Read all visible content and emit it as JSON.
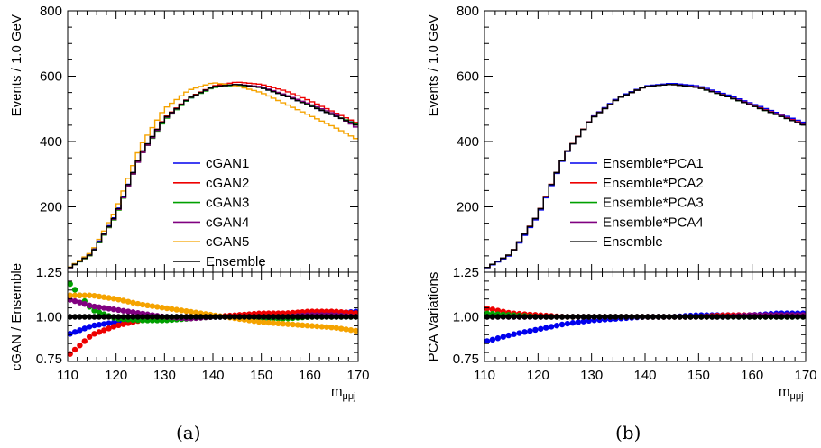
{
  "chart_data": [
    {
      "type": "line",
      "panel": "a",
      "caption": "(a)",
      "xlabel": "m_μμj",
      "xlim": [
        110,
        170
      ],
      "x_ticks": [
        110,
        120,
        130,
        140,
        150,
        160,
        170
      ],
      "x_tick_labels": [
        "110",
        "120",
        "130",
        "140",
        "150",
        "160",
        "170"
      ],
      "top": {
        "ylabel": "Events / 1.0 GeV",
        "ylim": [
          0,
          800
        ],
        "y_ticks": [
          200,
          400,
          600,
          800
        ],
        "y_tick_labels": [
          "200",
          "400",
          "600",
          "800"
        ],
        "legend_position": "center",
        "series": [
          {
            "name": "cGAN1",
            "color": "#0000ee",
            "x": [
              110,
              115,
              120,
              125,
              130,
              135,
              140,
              145,
              150,
              155,
              160,
              165,
              170
            ],
            "values": [
              10,
              60,
              178,
              360,
              470,
              530,
              568,
              575,
              565,
              540,
              510,
              480,
              452
            ]
          },
          {
            "name": "cGAN2",
            "color": "#ee0000",
            "x": [
              110,
              115,
              120,
              125,
              130,
              135,
              140,
              145,
              150,
              155,
              160,
              165,
              170
            ],
            "values": [
              10,
              55,
              172,
              358,
              472,
              533,
              570,
              582,
              575,
              555,
              525,
              490,
              455
            ]
          },
          {
            "name": "cGAN3",
            "color": "#00a000",
            "x": [
              110,
              115,
              120,
              125,
              130,
              135,
              140,
              145,
              150,
              155,
              160,
              165,
              170
            ],
            "values": [
              9,
              55,
              172,
              355,
              465,
              530,
              565,
              573,
              565,
              540,
              512,
              482,
              450
            ]
          },
          {
            "name": "cGAN4",
            "color": "#800080",
            "x": [
              110,
              115,
              120,
              125,
              130,
              135,
              140,
              145,
              150,
              155,
              160,
              165,
              170
            ],
            "values": [
              9,
              57,
              174,
              355,
              468,
              532,
              567,
              575,
              568,
              543,
              515,
              485,
              440
            ]
          },
          {
            "name": "cGAN5",
            "color": "#f5a300",
            "x": [
              110,
              115,
              120,
              125,
              130,
              135,
              140,
              145,
              150,
              155,
              160,
              165,
              170
            ],
            "values": [
              11,
              62,
              190,
              385,
              500,
              557,
              580,
              570,
              550,
              515,
              480,
              445,
              405
            ]
          },
          {
            "name": "Ensemble",
            "color": "#000000",
            "x": [
              110,
              115,
              120,
              125,
              130,
              135,
              140,
              145,
              150,
              155,
              160,
              165,
              170
            ],
            "values": [
              10,
              57,
              176,
              360,
              470,
              532,
              568,
              575,
              565,
              540,
              510,
              480,
              448
            ]
          }
        ]
      },
      "ratio": {
        "ylabel": "cGAN / Ensemble",
        "ylim": [
          0.75,
          1.25
        ],
        "y_ticks": [
          0.75,
          1.0,
          1.25
        ],
        "y_tick_labels": [
          "0.75",
          "1.00",
          "1.25"
        ],
        "series": [
          {
            "name": "cGAN1",
            "color": "#0000ee",
            "x": [
              110,
              115,
              120,
              125,
              130,
              135,
              140,
              145,
              150,
              155,
              160,
              165,
              170
            ],
            "values": [
              0.9,
              0.95,
              0.97,
              0.99,
              1.0,
              1.0,
              1.0,
              1.0,
              1.0,
              1.0,
              1.01,
              1.02,
              1.03
            ]
          },
          {
            "name": "cGAN2",
            "color": "#ee0000",
            "x": [
              110,
              115,
              120,
              125,
              130,
              135,
              140,
              145,
              150,
              155,
              160,
              165,
              170
            ],
            "values": [
              0.78,
              0.9,
              0.95,
              0.98,
              0.99,
              1.0,
              1.0,
              1.01,
              1.02,
              1.02,
              1.03,
              1.03,
              1.02
            ]
          },
          {
            "name": "cGAN3",
            "color": "#00a000",
            "x": [
              110,
              115,
              120,
              125,
              130,
              135,
              140,
              145,
              150,
              155,
              160,
              165,
              170
            ],
            "values": [
              1.2,
              1.04,
              0.99,
              0.98,
              0.98,
              0.99,
              1.0,
              1.0,
              0.99,
              0.99,
              1.0,
              1.0,
              1.0
            ]
          },
          {
            "name": "cGAN4",
            "color": "#800080",
            "x": [
              110,
              115,
              120,
              125,
              130,
              135,
              140,
              145,
              150,
              155,
              160,
              165,
              170
            ],
            "values": [
              1.1,
              1.06,
              1.04,
              1.02,
              1.0,
              0.99,
              1.0,
              1.0,
              1.0,
              1.0,
              1.01,
              1.01,
              1.0
            ]
          },
          {
            "name": "cGAN5",
            "color": "#f5a300",
            "x": [
              110,
              115,
              120,
              125,
              130,
              135,
              140,
              145,
              150,
              155,
              160,
              165,
              170
            ],
            "values": [
              1.12,
              1.12,
              1.1,
              1.07,
              1.05,
              1.03,
              1.01,
              0.99,
              0.97,
              0.96,
              0.95,
              0.94,
              0.92
            ]
          },
          {
            "name": "Ensemble",
            "color": "#000000",
            "x": [
              110,
              115,
              120,
              125,
              130,
              135,
              140,
              145,
              150,
              155,
              160,
              165,
              170
            ],
            "values": [
              1.0,
              1.0,
              1.0,
              1.0,
              1.0,
              1.0,
              1.0,
              1.0,
              1.0,
              1.0,
              1.0,
              1.0,
              1.0
            ]
          }
        ]
      }
    },
    {
      "type": "line",
      "panel": "b",
      "caption": "(b)",
      "xlabel": "m_μμj",
      "xlim": [
        110,
        170
      ],
      "x_ticks": [
        110,
        120,
        130,
        140,
        150,
        160,
        170
      ],
      "x_tick_labels": [
        "110",
        "120",
        "130",
        "140",
        "150",
        "160",
        "170"
      ],
      "top": {
        "ylabel": "Events / 1.0 GeV",
        "ylim": [
          0,
          800
        ],
        "y_ticks": [
          200,
          400,
          600,
          800
        ],
        "y_tick_labels": [
          "200",
          "400",
          "600",
          "800"
        ],
        "legend_position": "center-right",
        "series": [
          {
            "name": "Ensemble*PCA1",
            "color": "#0000ee",
            "x": [
              110,
              115,
              120,
              125,
              130,
              135,
              140,
              145,
              150,
              155,
              160,
              165,
              170
            ],
            "values": [
              9,
              54,
              172,
              358,
              472,
              535,
              570,
              578,
              570,
              545,
              516,
              486,
              456
            ]
          },
          {
            "name": "Ensemble*PCA2",
            "color": "#ee0000",
            "x": [
              110,
              115,
              120,
              125,
              130,
              135,
              140,
              145,
              150,
              155,
              160,
              165,
              170
            ],
            "values": [
              10,
              57,
              177,
              361,
              471,
              532,
              568,
              575,
              566,
              541,
              512,
              482,
              452
            ]
          },
          {
            "name": "Ensemble*PCA3",
            "color": "#00a000",
            "x": [
              110,
              115,
              120,
              125,
              130,
              135,
              140,
              145,
              150,
              155,
              160,
              165,
              170
            ],
            "values": [
              10,
              57,
              176,
              360,
              470,
              532,
              568,
              575,
              565,
              540,
              510,
              480,
              448
            ]
          },
          {
            "name": "Ensemble*PCA4",
            "color": "#800080",
            "x": [
              110,
              115,
              120,
              125,
              130,
              135,
              140,
              145,
              150,
              155,
              160,
              165,
              170
            ],
            "values": [
              10,
              57,
              176,
              360,
              470,
              532,
              568,
              575,
              565,
              541,
              511,
              481,
              450
            ]
          },
          {
            "name": "Ensemble",
            "color": "#000000",
            "x": [
              110,
              115,
              120,
              125,
              130,
              135,
              140,
              145,
              150,
              155,
              160,
              165,
              170
            ],
            "values": [
              10,
              57,
              176,
              360,
              470,
              532,
              568,
              575,
              565,
              540,
              510,
              480,
              448
            ]
          }
        ]
      },
      "ratio": {
        "ylabel": "PCA Variations",
        "ylim": [
          0.75,
          1.25
        ],
        "y_ticks": [
          0.75,
          1.0,
          1.25
        ],
        "y_tick_labels": [
          "0.75",
          "1.00",
          "1.25"
        ],
        "series": [
          {
            "name": "Ensemble*PCA1",
            "color": "#0000ee",
            "x": [
              110,
              115,
              120,
              125,
              130,
              135,
              140,
              145,
              150,
              155,
              160,
              165,
              170
            ],
            "values": [
              0.86,
              0.9,
              0.93,
              0.96,
              0.98,
              0.99,
              1.0,
              1.0,
              1.01,
              1.01,
              1.01,
              1.02,
              1.02
            ]
          },
          {
            "name": "Ensemble*PCA2",
            "color": "#ee0000",
            "x": [
              110,
              115,
              120,
              125,
              130,
              135,
              140,
              145,
              150,
              155,
              160,
              165,
              170
            ],
            "values": [
              1.05,
              1.02,
              1.01,
              1.0,
              1.0,
              1.0,
              1.0,
              1.0,
              1.0,
              1.01,
              1.01,
              1.01,
              1.01
            ]
          },
          {
            "name": "Ensemble*PCA3",
            "color": "#00a000",
            "x": [
              110,
              115,
              120,
              125,
              130,
              135,
              140,
              145,
              150,
              155,
              160,
              165,
              170
            ],
            "values": [
              1.02,
              1.01,
              1.0,
              1.0,
              1.0,
              1.0,
              1.0,
              1.0,
              1.0,
              1.0,
              1.0,
              1.0,
              1.0
            ]
          },
          {
            "name": "Ensemble*PCA4",
            "color": "#800080",
            "x": [
              110,
              115,
              120,
              125,
              130,
              135,
              140,
              145,
              150,
              155,
              160,
              165,
              170
            ],
            "values": [
              1.0,
              1.0,
              1.0,
              1.0,
              1.0,
              1.0,
              1.0,
              1.0,
              1.0,
              1.0,
              1.01,
              1.01,
              1.01
            ]
          },
          {
            "name": "Ensemble",
            "color": "#000000",
            "x": [
              110,
              115,
              120,
              125,
              130,
              135,
              140,
              145,
              150,
              155,
              160,
              165,
              170
            ],
            "values": [
              1.0,
              1.0,
              1.0,
              1.0,
              1.0,
              1.0,
              1.0,
              1.0,
              1.0,
              1.0,
              1.0,
              1.0,
              1.0
            ]
          }
        ]
      }
    }
  ]
}
